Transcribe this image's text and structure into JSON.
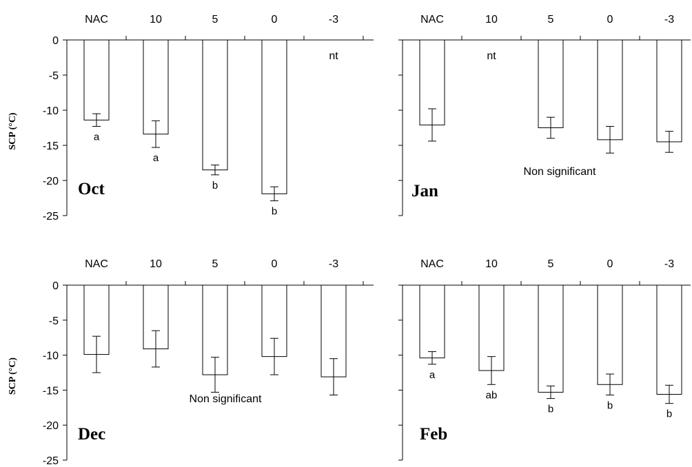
{
  "chart_data": [
    {
      "type": "bar",
      "title": "Oct",
      "ylabel": "SCP (°C)",
      "categories": [
        "NAC",
        "10",
        "5",
        "0",
        "-3"
      ],
      "values": [
        -11.4,
        -13.4,
        -18.5,
        -21.9,
        null
      ],
      "errors": [
        0.9,
        1.9,
        0.7,
        1.0,
        null
      ],
      "letters": [
        "a",
        "a",
        "b",
        "b",
        ""
      ],
      "nt_label": "nt",
      "nt_index": 4,
      "note": "",
      "ylim": [
        -25,
        0
      ],
      "yticks": [
        "0",
        "-5",
        "-10",
        "-15",
        "-20",
        "-25"
      ]
    },
    {
      "type": "bar",
      "title": "Jan",
      "ylabel": "",
      "categories": [
        "NAC",
        "10",
        "5",
        "0",
        "-3"
      ],
      "values": [
        -12.1,
        null,
        -12.5,
        -14.2,
        -14.5
      ],
      "errors": [
        2.3,
        null,
        1.5,
        1.9,
        1.5
      ],
      "letters": [
        "",
        "",
        "",
        "",
        ""
      ],
      "nt_label": "nt",
      "nt_index": 1,
      "note": "Non significant",
      "ylim": [
        -25,
        0
      ],
      "yticks": []
    },
    {
      "type": "bar",
      "title": "Dec",
      "ylabel": "SCP (°C)",
      "categories": [
        "NAC",
        "10",
        "5",
        "0",
        "-3"
      ],
      "values": [
        -9.9,
        -9.1,
        -12.8,
        -10.2,
        -13.1
      ],
      "errors": [
        2.6,
        2.6,
        2.5,
        2.6,
        2.6
      ],
      "letters": [
        "",
        "",
        "",
        "",
        ""
      ],
      "nt_label": "",
      "nt_index": null,
      "note": "Non significant",
      "ylim": [
        -25,
        0
      ],
      "yticks": [
        "0",
        "-5",
        "-10",
        "-15",
        "-20",
        "-25"
      ]
    },
    {
      "type": "bar",
      "title": "Feb",
      "ylabel": "",
      "categories": [
        "NAC",
        "10",
        "5",
        "0",
        "-3"
      ],
      "values": [
        -10.4,
        -12.2,
        -15.3,
        -14.2,
        -15.6
      ],
      "errors": [
        0.9,
        2.0,
        0.9,
        1.5,
        1.3
      ],
      "letters": [
        "a",
        "ab",
        "b",
        "b",
        "b"
      ],
      "nt_label": "",
      "nt_index": null,
      "note": "",
      "ylim": [
        -25,
        0
      ],
      "yticks": []
    }
  ]
}
